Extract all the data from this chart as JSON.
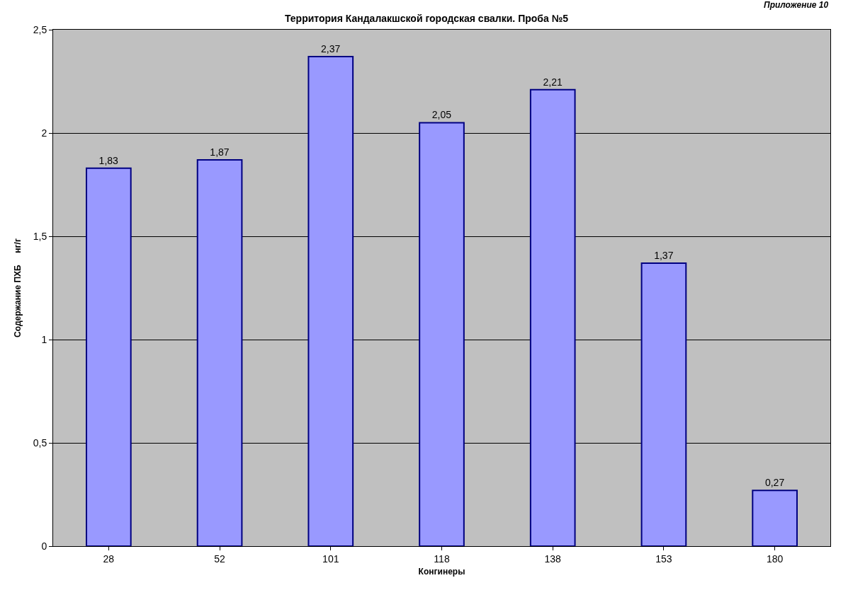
{
  "chart_data": {
    "type": "bar",
    "title": "Территория Кандалакшской городская свалки. Проба №5",
    "xlabel": "Конгинеры",
    "ylabel": "Содержание ПХБ     нг/г",
    "annotations": [
      "Приложение 10"
    ],
    "categories": [
      "28",
      "52",
      "101",
      "118",
      "138",
      "153",
      "180"
    ],
    "values": [
      1.83,
      1.87,
      2.37,
      2.05,
      2.21,
      1.37,
      0.27
    ],
    "value_labels": [
      "1,83",
      "1,87",
      "2,37",
      "2,05",
      "2,21",
      "1,37",
      "0,27"
    ],
    "color": "#9999ff",
    "ylim": [
      0,
      2.5
    ],
    "yticks": [
      {
        "value": 0,
        "label": "0"
      },
      {
        "value": 0.5,
        "label": "0,5"
      },
      {
        "value": 1,
        "label": "1"
      },
      {
        "value": 1.5,
        "label": "1,5"
      },
      {
        "value": 2,
        "label": "2"
      },
      {
        "value": 2.5,
        "label": "2,5"
      }
    ],
    "grid": "y"
  }
}
